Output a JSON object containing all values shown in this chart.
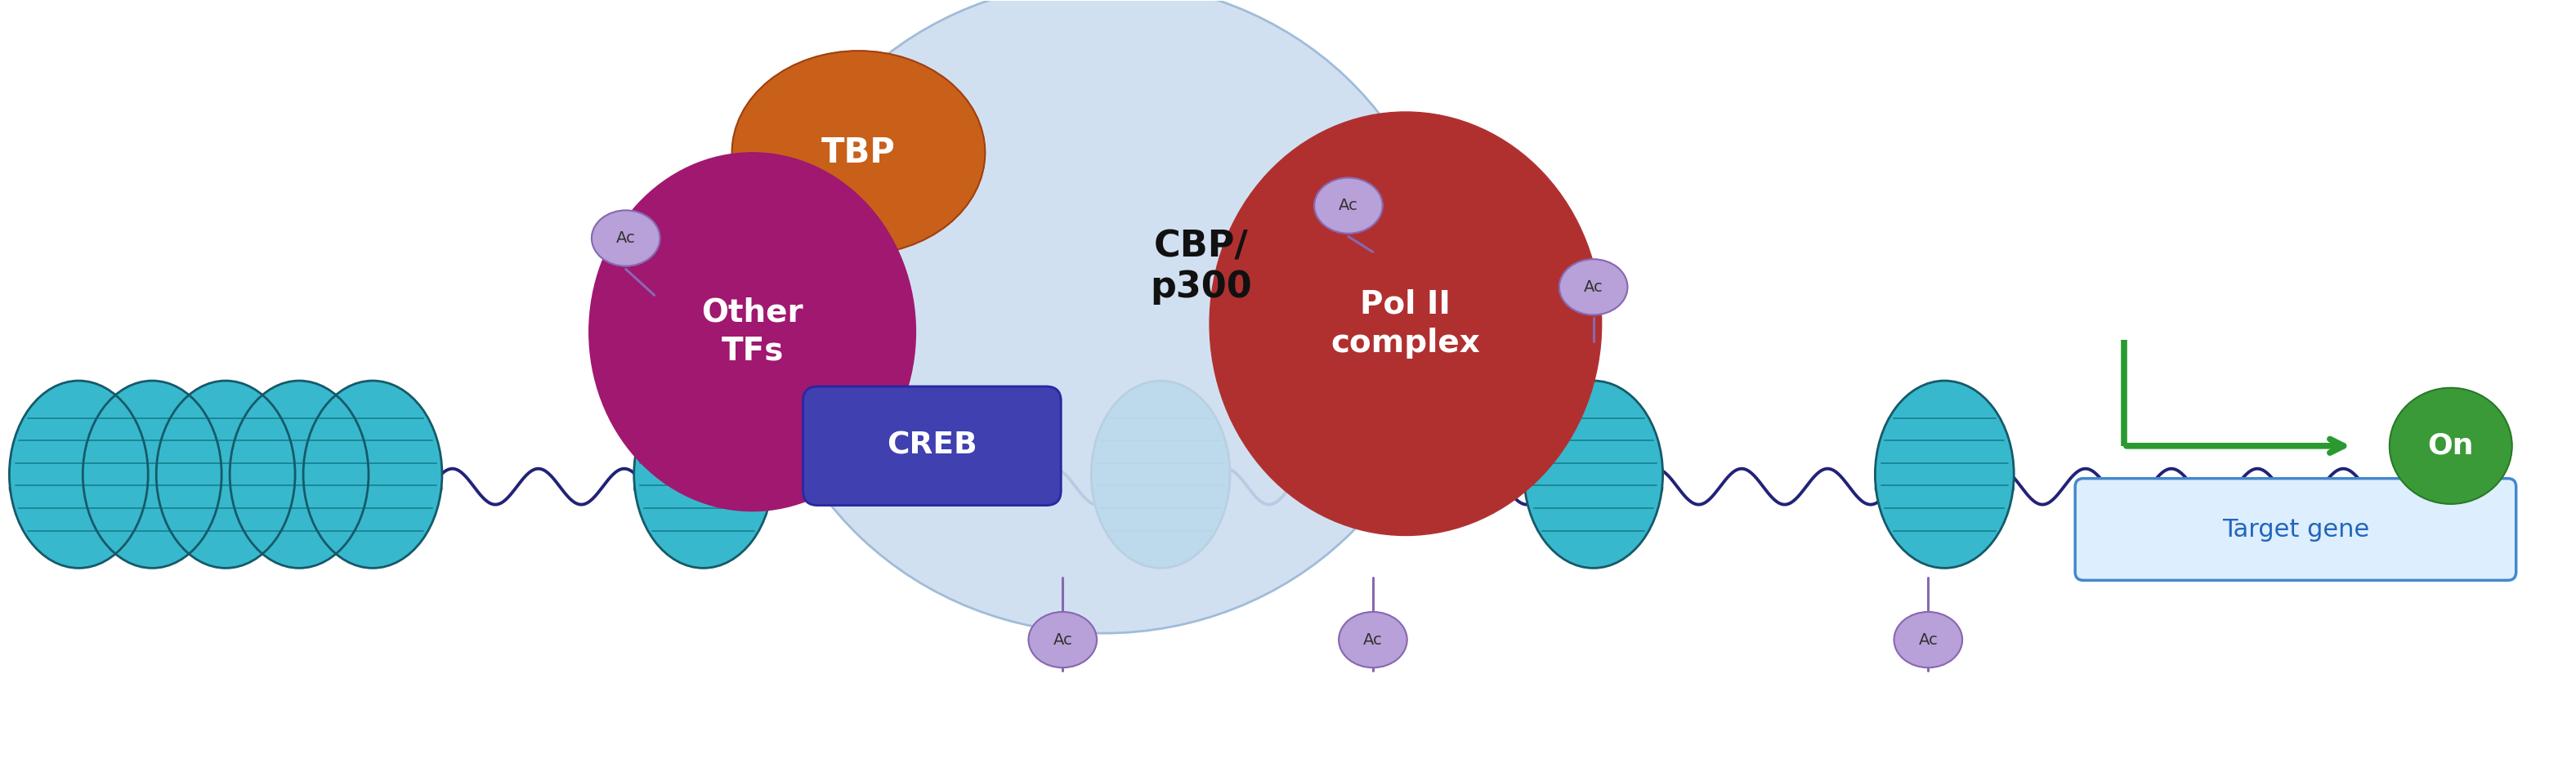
{
  "fig_width": 31.52,
  "fig_height": 9.56,
  "background": "#ffffff",
  "colors": {
    "tbp": "#c8601a",
    "cbp_bg": "#ccddf0",
    "cbp_edge": "#a0bcd8",
    "other_tfs": "#a01870",
    "creb": "#4040b0",
    "creb_edge": "#2828a0",
    "pol2": "#b03030",
    "on_circle": "#3a9a38",
    "on_edge": "#2a7a28",
    "ac_fill": "#b8a0d8",
    "ac_edge": "#8868b0",
    "ac_text": "#333333",
    "dna": "#222278",
    "nuc_main": "#38b8cc",
    "nuc_dark": "#1a8898",
    "nuc_edge": "#155a6a",
    "target_fill": "#ddeeff",
    "target_edge": "#4488cc",
    "target_text": "#2266bb",
    "green": "#2a9a30"
  },
  "xlim": [
    0,
    31.52
  ],
  "ylim": [
    0,
    9.56
  ]
}
